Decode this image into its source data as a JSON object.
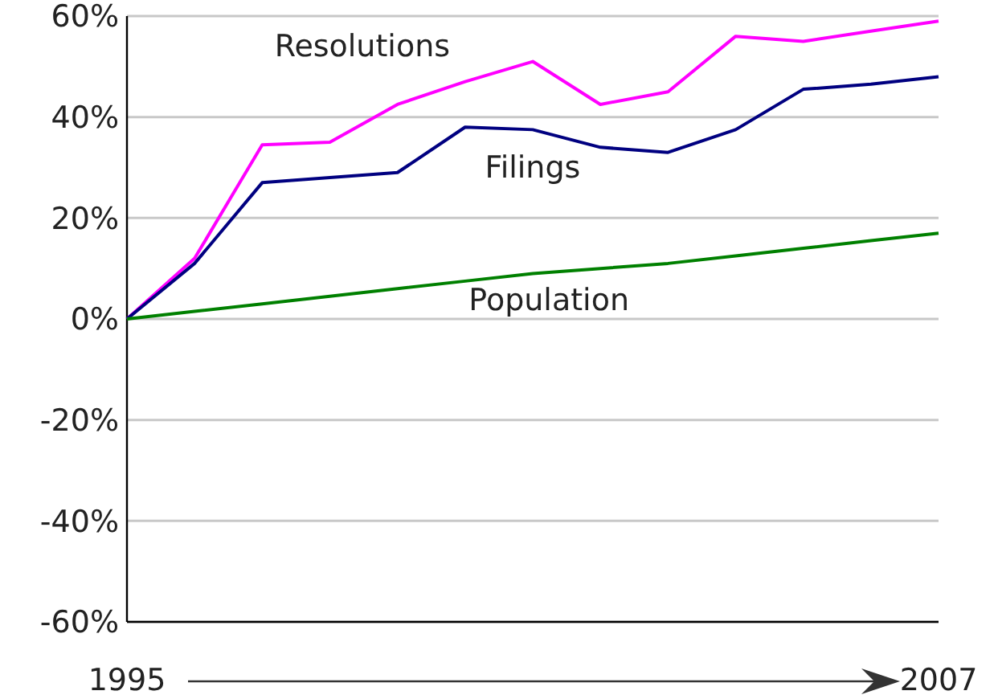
{
  "chart_data": {
    "type": "line",
    "x": [
      1995,
      1996,
      1997,
      1998,
      1999,
      2000,
      2001,
      2002,
      2003,
      2004,
      2005,
      2006,
      2007
    ],
    "series": [
      {
        "name": "Resolutions",
        "color": "#ff00ff",
        "values": [
          0,
          12,
          34.5,
          35,
          42.5,
          47,
          51,
          42.5,
          45,
          56,
          55,
          57,
          59
        ]
      },
      {
        "name": "Filings",
        "color": "#000080",
        "values": [
          0,
          11,
          27,
          28,
          29,
          38,
          37.5,
          34,
          33,
          37.5,
          45.5,
          46.5,
          48
        ]
      },
      {
        "name": "Population",
        "color": "#008000",
        "values": [
          0,
          1.5,
          3,
          4.5,
          6,
          7.5,
          9,
          10,
          11,
          12.5,
          14,
          15.5,
          17
        ]
      }
    ],
    "xlim": [
      1995,
      2007
    ],
    "xticks": [
      1995,
      2007
    ],
    "ylim": [
      -60,
      60
    ],
    "yticks": [
      {
        "value": -60,
        "label": "-60%"
      },
      {
        "value": -40,
        "label": "-40%"
      },
      {
        "value": -20,
        "label": "-20%"
      },
      {
        "value": 0,
        "label": "0%"
      },
      {
        "value": 20,
        "label": "20%"
      },
      {
        "value": 40,
        "label": "40%"
      },
      {
        "value": 60,
        "label": "60%"
      }
    ],
    "grid": "y",
    "marker": "none",
    "line_style": "solid"
  }
}
